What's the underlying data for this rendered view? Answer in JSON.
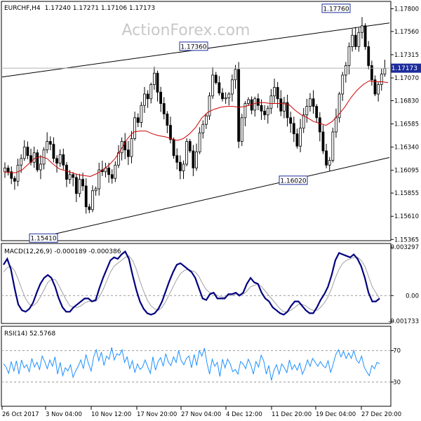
{
  "header": {
    "symbol": "EURCHF,H4",
    "ohlc": "1.17240 1.17271 1.17106 1.17173"
  },
  "watermark": "ActionForex.com",
  "colors": {
    "candle": "#000000",
    "ma": "#d00000",
    "macd": "#00007f",
    "signal": "#a0a0a0",
    "rsi": "#1e90ff",
    "grid_dash": "#999999",
    "label_border": "#1c2c9c",
    "current_box": "#1c2c9c"
  },
  "chart_data": [
    {
      "type": "candlestick",
      "title": "EURCHF,H4",
      "ylim": [
        1.1536,
        1.1787
      ],
      "y_ticks": [
        "1.17800",
        "1.17560",
        "1.17315",
        "1.17070",
        "1.16830",
        "1.16585",
        "1.16340",
        "1.16095",
        "1.15855",
        "1.15610",
        "1.15365"
      ],
      "current_price": "1.17173",
      "close_series": [
        1.1612,
        1.1608,
        1.1601,
        1.1598,
        1.1615,
        1.1622,
        1.1634,
        1.1625,
        1.1618,
        1.1628,
        1.161,
        1.1616,
        1.1631,
        1.164,
        1.1637,
        1.1622,
        1.1617,
        1.1626,
        1.1615,
        1.16,
        1.1605,
        1.1602,
        1.1585,
        1.16,
        1.1593,
        1.1571,
        1.1568,
        1.1588,
        1.159,
        1.161,
        1.1608,
        1.1612,
        1.1605,
        1.1601,
        1.1615,
        1.1628,
        1.164,
        1.1631,
        1.1624,
        1.1643,
        1.1665,
        1.166,
        1.1678,
        1.169,
        1.1685,
        1.17,
        1.1712,
        1.1692,
        1.168,
        1.1669,
        1.1657,
        1.1642,
        1.1625,
        1.1618,
        1.1609,
        1.1616,
        1.164,
        1.163,
        1.1612,
        1.1629,
        1.1649,
        1.1658,
        1.1667,
        1.1688,
        1.171,
        1.1702,
        1.1691,
        1.1685,
        1.1686,
        1.169,
        1.1705,
        1.1716,
        1.164,
        1.1665,
        1.168,
        1.1684,
        1.1673,
        1.1685,
        1.1678,
        1.1672,
        1.1668,
        1.1675,
        1.1688,
        1.1697,
        1.1685,
        1.1672,
        1.1681,
        1.1665,
        1.1659,
        1.1648,
        1.1635,
        1.1654,
        1.1668,
        1.1677,
        1.1685,
        1.1677,
        1.1665,
        1.165,
        1.163,
        1.1615,
        1.162,
        1.165,
        1.1665,
        1.169,
        1.171,
        1.172,
        1.174,
        1.1752,
        1.174,
        1.1755,
        1.1762,
        1.174,
        1.172,
        1.1705,
        1.169,
        1.17,
        1.1711,
        1.1717
      ],
      "ma_series": [
        1.1608,
        1.1607,
        1.1607,
        1.161,
        1.1616,
        1.1622,
        1.1624,
        1.1622,
        1.1616,
        1.1611,
        1.1609,
        1.1607,
        1.1605,
        1.1604,
        1.1603,
        1.1606,
        1.161,
        1.1615,
        1.1622,
        1.1632,
        1.1643,
        1.165,
        1.1651,
        1.1651,
        1.1648,
        1.1646,
        1.1645,
        1.1643,
        1.1641,
        1.1643,
        1.1648,
        1.1655,
        1.1665,
        1.1671,
        1.1674,
        1.1676,
        1.1677,
        1.1677,
        1.1676,
        1.1677,
        1.1679,
        1.1681,
        1.1681,
        1.168,
        1.168,
        1.168,
        1.1679,
        1.1673,
        1.1668,
        1.1665,
        1.1661,
        1.1659,
        1.1657,
        1.1661,
        1.1668,
        1.1676,
        1.1686,
        1.1694,
        1.17,
        1.1704,
        1.1703,
        1.1703,
        1.1702
      ],
      "annotations": [
        {
          "text": "1.15410",
          "value": 1.1541
        },
        {
          "text": "1.17360",
          "value": 1.1736
        },
        {
          "text": "1.16020",
          "value": 1.1602
        },
        {
          "text": "1.17760",
          "value": 1.1776
        }
      ],
      "channel": {
        "upper": {
          "from_price": 1.1708,
          "to_price": 1.1765
        },
        "lower": {
          "from_price": 1.1541,
          "to_price": 1.1623
        }
      }
    },
    {
      "type": "line",
      "title": "MACD(12,26,9) -0.000189 -0.000386",
      "ylim": [
        -0.00185,
        0.00345
      ],
      "y_ticks": [
        "0.003297",
        "0.00",
        "-0.001733"
      ],
      "zero_line": true,
      "series": [
        {
          "name": "MACD",
          "values": [
            0.0021,
            0.0025,
            0.0018,
            0.0005,
            -0.0006,
            -0.001,
            -0.0011,
            -0.0009,
            -0.0005,
            0.0002,
            0.0008,
            0.0012,
            0.0014,
            0.0012,
            0.0006,
            -0.0002,
            -0.0008,
            -0.0011,
            -0.0011,
            -0.0008,
            -0.0006,
            -0.0004,
            -0.0002,
            -0.0002,
            -0.0004,
            -0.0003,
            0.0005,
            0.0012,
            0.0018,
            0.0024,
            0.0026,
            0.0025,
            0.0028,
            0.003,
            0.0025,
            0.0014,
            0.0004,
            -0.0004,
            -0.0009,
            -0.0012,
            -0.0013,
            -0.0012,
            -0.0009,
            -0.0004,
            0.0003,
            0.001,
            0.0016,
            0.0021,
            0.0022,
            0.002,
            0.0018,
            0.0016,
            0.0012,
            0.0005,
            -0.0002,
            -0.0003,
            0.0001,
            0.0002,
            -0.0002,
            -0.0002,
            -0.0002,
            0.0001,
            0.0001,
            0.0002,
            0.0,
            0.0002,
            0.0008,
            0.0012,
            0.0009,
            0.0008,
            0.0002,
            -0.0002,
            -0.0004,
            -0.0008,
            -0.001,
            -0.0012,
            -0.0013,
            -0.0011,
            -0.0007,
            -0.0004,
            -0.0004,
            -0.0007,
            -0.001,
            -0.0012,
            -0.0012,
            -0.0008,
            -0.0003,
            0.0001,
            0.0006,
            0.0014,
            0.0024,
            0.0029,
            0.0028,
            0.0027,
            0.0026,
            0.0028,
            0.0025,
            0.002,
            0.0012,
            0.0002,
            -0.0004,
            -0.0004,
            -0.0002
          ]
        },
        {
          "name": "Signal",
          "values": [
            0.0016,
            0.0019,
            0.002,
            0.0017,
            0.0011,
            0.0004,
            -0.0002,
            -0.0006,
            -0.0007,
            -0.0005,
            -0.0001,
            0.0004,
            0.0009,
            0.0011,
            0.0011,
            0.0007,
            0.0002,
            -0.0003,
            -0.0007,
            -0.0008,
            -0.0008,
            -0.0007,
            -0.0005,
            -0.0004,
            -0.0004,
            -0.0004,
            -0.0001,
            0.0004,
            0.001,
            0.0016,
            0.002,
            0.0022,
            0.0024,
            0.0026,
            0.0027,
            0.0024,
            0.0018,
            0.001,
            0.0003,
            -0.0003,
            -0.0007,
            -0.0009,
            -0.001,
            -0.0008,
            -0.0004,
            0.0001,
            0.0006,
            0.0011,
            0.0015,
            0.0017,
            0.0018,
            0.0017,
            0.0016,
            0.0013,
            0.0008,
            0.0004,
            0.0002,
            0.0002,
            0.0,
            -0.0001,
            -0.0001,
            0.0,
            0.0,
            0.0001,
            0.0001,
            0.0001,
            0.0003,
            0.0006,
            0.0007,
            0.0008,
            0.0006,
            0.0003,
            0.0,
            -0.0003,
            -0.0006,
            -0.0009,
            -0.0011,
            -0.0011,
            -0.001,
            -0.0008,
            -0.0006,
            -0.0006,
            -0.0007,
            -0.0009,
            -0.001,
            -0.001,
            -0.0008,
            -0.0005,
            -0.0001,
            0.0005,
            0.0012,
            0.0018,
            0.0022,
            0.0024,
            0.0025,
            0.0026,
            0.0026,
            0.0024,
            0.002,
            0.0013,
            0.0006,
            0.0002,
            -0.0002
          ]
        }
      ]
    },
    {
      "type": "line",
      "title": "RSI(14) 52.5768",
      "ylim": [
        0,
        100
      ],
      "y_ticks": [
        "70",
        "30"
      ],
      "series": [
        {
          "name": "RSI",
          "values": [
            53,
            49,
            41,
            56,
            44,
            57,
            40,
            58,
            48,
            52,
            43,
            60,
            49,
            55,
            46,
            63,
            56,
            47,
            58,
            50,
            62,
            40,
            55,
            38,
            48,
            44,
            52,
            36,
            44,
            50,
            58,
            47,
            65,
            53,
            44,
            62,
            71,
            57,
            68,
            51,
            63,
            59,
            74,
            58,
            66,
            64,
            71,
            55,
            62,
            47,
            57,
            42,
            53,
            46,
            49,
            58,
            49,
            41,
            62,
            45,
            56,
            61,
            50,
            66,
            55,
            51,
            62,
            55,
            70,
            57,
            52,
            60,
            63,
            48,
            65,
            51,
            70,
            63,
            73,
            54,
            40,
            59,
            50,
            55,
            37,
            59,
            48,
            59,
            53,
            43,
            46,
            40,
            56,
            53,
            47,
            59,
            52,
            40,
            56,
            49,
            64,
            57,
            40,
            51,
            32,
            45,
            52,
            40,
            53,
            48,
            42,
            58,
            46,
            52,
            45,
            54,
            40,
            47,
            58,
            50,
            60,
            55,
            50,
            56,
            51,
            48,
            57,
            42,
            53,
            65,
            71,
            62,
            69,
            60,
            67,
            60,
            70,
            58,
            54,
            63,
            49,
            43,
            38,
            51,
            47,
            55,
            53
          ]
        }
      ]
    }
  ],
  "x_axis": {
    "labels": [
      "26 Oct 2017",
      "3 Nov 04:00",
      "10 Nov 12:00",
      "17 Nov 20:00",
      "27 Nov 04:00",
      "4 Dec 12:00",
      "11 Dec 20:00",
      "19 Dec 04:00",
      "27 Dec 20:00"
    ]
  }
}
